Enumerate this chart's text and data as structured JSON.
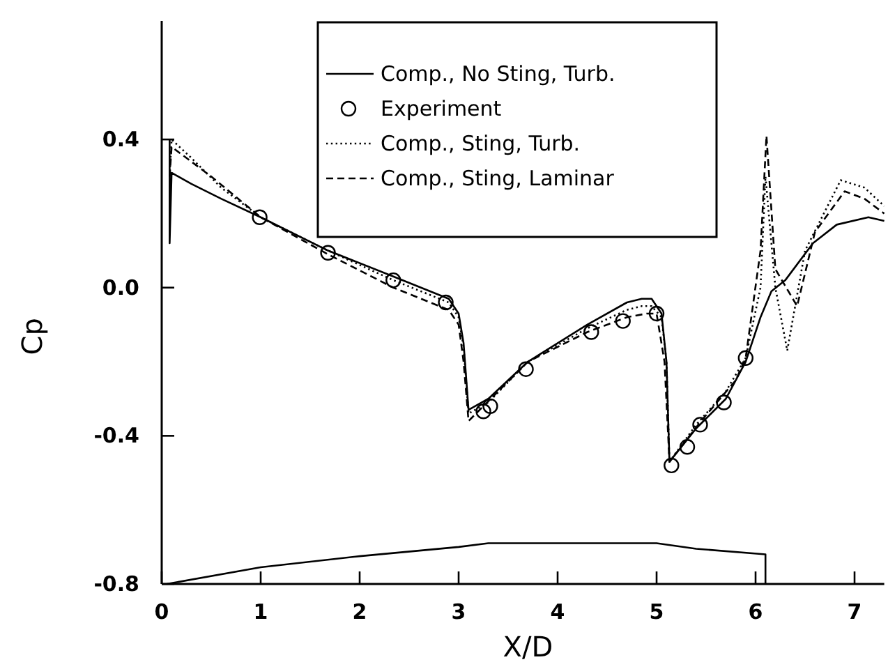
{
  "chart_data": {
    "type": "line",
    "xlabel": "X/D",
    "ylabel": "Cp",
    "xlim": [
      0,
      7.3
    ],
    "ylim": [
      -0.8,
      0.72
    ],
    "xticks": [
      0,
      1,
      2,
      3,
      4,
      5,
      6,
      7
    ],
    "yticks": [
      {
        "value": 0.4,
        "label": "0.4"
      },
      {
        "value": 0,
        "label": "0.0"
      },
      {
        "value": -0.4,
        "label": "-0.4"
      },
      {
        "value": -0.8,
        "label": "-0.8"
      }
    ],
    "legend": "top",
    "grid": false,
    "series": [
      {
        "name": "Comp., No Sting, Turb.",
        "line_style": "solid",
        "color": "#000000",
        "x": [
          0.08,
          0.08,
          0.1,
          0.3,
          0.6,
          1,
          1.68,
          2.34,
          2.9,
          3.0,
          3.05,
          3.1,
          3.3,
          3.7,
          4.3,
          4.7,
          4.85,
          4.95,
          5.05,
          5.1,
          5.13,
          5.4,
          5.7,
          5.9,
          6.05,
          6.16,
          6.3,
          6.58,
          6.82,
          7.14,
          7.3
        ],
        "values": [
          0.4,
          0.12,
          0.31,
          0.28,
          0.24,
          0.19,
          0.1,
          0.03,
          -0.03,
          -0.07,
          -0.15,
          -0.33,
          -0.3,
          -0.2,
          -0.1,
          -0.04,
          -0.03,
          -0.03,
          -0.07,
          -0.2,
          -0.47,
          -0.38,
          -0.3,
          -0.2,
          -0.08,
          -0.01,
          0.02,
          0.12,
          0.17,
          0.19,
          0.18
        ]
      },
      {
        "name": "Experiment",
        "type": "scatter",
        "marker": "circle",
        "color": "#000000",
        "x": [
          0.99,
          1.68,
          2.34,
          2.87,
          3.25,
          3.32,
          3.68,
          4.34,
          4.66,
          5.0,
          5.15,
          5.31,
          5.44,
          5.68,
          5.9
        ],
        "values": [
          0.19,
          0.094,
          0.02,
          -0.04,
          -0.334,
          -0.32,
          -0.22,
          -0.12,
          -0.09,
          -0.07,
          -0.48,
          -0.43,
          -0.37,
          -0.31,
          -0.19
        ]
      },
      {
        "name": "Comp., Sting, Turb.",
        "line_style": "dotted",
        "color": "#000000",
        "x": [
          0.08,
          0.1,
          0.3,
          0.6,
          1,
          1.68,
          2.34,
          2.9,
          3.0,
          3.05,
          3.1,
          3.3,
          3.7,
          4.3,
          4.7,
          4.85,
          4.95,
          5.05,
          5.1,
          5.13,
          5.4,
          5.7,
          5.9,
          6.05,
          6.1,
          6.2,
          6.32,
          6.5,
          6.86,
          7.1,
          7.3
        ],
        "values": [
          0.3,
          0.4,
          0.35,
          0.27,
          0.19,
          0.1,
          0.02,
          -0.04,
          -0.08,
          -0.16,
          -0.34,
          -0.31,
          -0.2,
          -0.11,
          -0.06,
          -0.05,
          -0.05,
          -0.08,
          -0.2,
          -0.47,
          -0.37,
          -0.28,
          -0.19,
          0.0,
          0.3,
          0.0,
          -0.17,
          0.1,
          0.29,
          0.27,
          0.22
        ]
      },
      {
        "line_style": "solid",
        "color": "#000000",
        "x": [
          0.05,
          1,
          2,
          3,
          3.3,
          5,
          5.4,
          6.1,
          6.1
        ],
        "values": [
          -0.8,
          -0.755,
          -0.725,
          -0.7,
          -0.69,
          -0.69,
          -0.705,
          -0.72,
          -0.8
        ]
      },
      {
        "name": "Comp., Sting, Laminar",
        "line_style": "dashed",
        "color": "#000000",
        "x": [
          0.08,
          0.1,
          0.5,
          1,
          1.68,
          2.34,
          2.9,
          3.0,
          3.05,
          3.1,
          3.25,
          3.7,
          4.3,
          4.7,
          4.9,
          5.0,
          5.08,
          5.13,
          5.45,
          5.8,
          5.9,
          6.05,
          6.11,
          6.2,
          6.42,
          6.6,
          6.9,
          7.1,
          7.3
        ],
        "values": [
          0.3,
          0.38,
          0.3,
          0.19,
          0.09,
          0.0,
          -0.06,
          -0.1,
          -0.2,
          -0.36,
          -0.32,
          -0.2,
          -0.12,
          -0.08,
          -0.07,
          -0.07,
          -0.2,
          -0.47,
          -0.36,
          -0.25,
          -0.19,
          0.1,
          0.41,
          0.05,
          -0.05,
          0.15,
          0.26,
          0.24,
          0.2
        ]
      }
    ]
  }
}
